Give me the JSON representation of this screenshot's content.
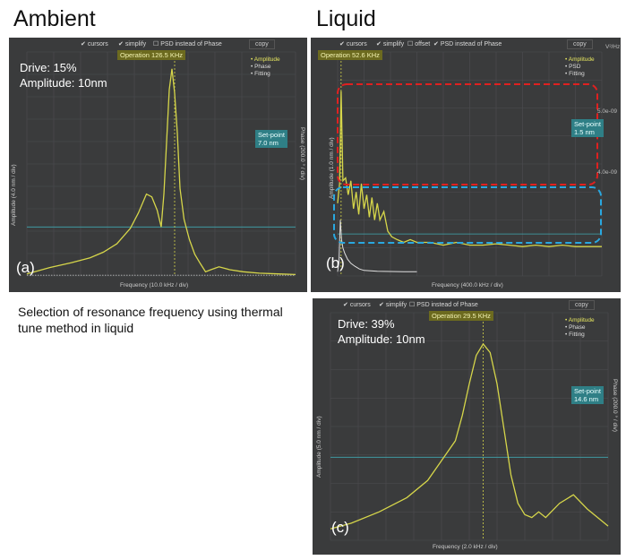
{
  "headings": {
    "ambient": "Ambient",
    "liquid": "Liquid"
  },
  "caption": "Selection of resonance frequency using thermal tune method in liquid",
  "colors": {
    "amplitude": "#d6d64a",
    "psd": "#e0e0e0",
    "setpoint": "#3fa7b0",
    "panel": "#3a3b3c",
    "grid": "#4d4e50",
    "highlight_red": "#e02020",
    "highlight_blue": "#29a8e0"
  },
  "panels": {
    "a": {
      "toolbar": {
        "cursors": "cursors",
        "simplify": "simplify",
        "psd": "PSD instead of Phase",
        "copy": "copy"
      },
      "operation_label": "Operation 126.5 KHz",
      "setpoint_label": [
        "Set-point",
        "7.0 nm"
      ],
      "legend": [
        "Amplitude",
        "Phase",
        "Fitting"
      ],
      "drive": "Drive: 15%",
      "amplitude": "Amplitude: 10nm",
      "panel_label": "(a)",
      "xlabel": "Frequency (10.0 kHz / div)",
      "ylabel": "Amplitude (4.0 nm / div)",
      "y2label": "Phase (200.0 ° / div)"
    },
    "b": {
      "toolbar": {
        "cursors": "cursors",
        "simplify": "simplify",
        "offset": "offset",
        "psd": "PSD instead of Phase",
        "copy": "copy"
      },
      "operation_label": "Operation 52.6 KHz",
      "setpoint_label": [
        "Set-point",
        "1.5 nm"
      ],
      "legend": [
        "Amplitude",
        "PSD",
        "Fitting"
      ],
      "panel_label": "(b)",
      "xlabel": "Frequency (400.0 kHz / div)",
      "ylabel": "Amplitude (1.0 nm / div)",
      "right_units": "V²/Hz",
      "right_ticks": [
        "5.0e-09",
        "4.0e-09"
      ]
    },
    "c": {
      "toolbar": {
        "cursors": "cursors",
        "simplify": "simplify",
        "psd": "PSD instead of Phase",
        "copy": "copy"
      },
      "operation_label": "Operation 29.5 KHz",
      "setpoint_label": [
        "Set-point",
        "14.6 nm"
      ],
      "legend": [
        "Amplitude",
        "Phase",
        "Fitting"
      ],
      "drive": "Drive: 39%",
      "amplitude": "Amplitude: 10nm",
      "panel_label": "(c)",
      "xlabel": "Frequency (2.0 kHz / div)",
      "ylabel": "Amplitude (5.0 nm / div)",
      "y2label": "Phase (200.0 ° / div)"
    }
  },
  "chart_data": [
    {
      "type": "line",
      "panel": "a",
      "xlabel": "Frequency (10.0 kHz / div)",
      "ylabel": "Amplitude (4.0 nm / div)",
      "x_unit": "kHz",
      "y_unit": "nm",
      "xlim": [
        71.5,
        171.5
      ],
      "ylim": [
        0,
        32
      ],
      "operation_frequency": 126.5,
      "setpoint": 7.0,
      "series": [
        {
          "name": "Amplitude",
          "x": [
            71.5,
            80,
            88,
            95,
            100,
            105,
            110,
            113,
            116,
            118,
            120,
            121.5,
            122.5,
            123.5,
            124.5,
            125.5,
            126.5,
            127.5,
            128.5,
            130,
            132,
            134,
            136,
            138,
            140,
            143,
            147,
            152,
            158,
            165,
            171.5
          ],
          "y": [
            0.3,
            1.2,
            1.9,
            2.6,
            3.4,
            4.6,
            6.8,
            9.0,
            11.7,
            11.3,
            9.4,
            7.0,
            11.7,
            19.1,
            26.6,
            29.6,
            26.1,
            20.4,
            12.5,
            8.1,
            5.2,
            3.1,
            1.8,
            0.6,
            0.9,
            1.3,
            0.9,
            0.6,
            0.4,
            0.3,
            0.2
          ]
        },
        {
          "name": "Phase",
          "x": [
            71.5,
            171.5
          ],
          "y": [
            0.1,
            0.1
          ]
        }
      ]
    },
    {
      "type": "line",
      "panel": "b",
      "xlabel": "Frequency (400.0 kHz / div)",
      "ylabel": "Amplitude (1.0 nm / div)",
      "x_unit": "kHz",
      "y_unit": "nm",
      "xlim": [
        0,
        4000
      ],
      "ylim": [
        0,
        8
      ],
      "operation_frequency": 52.6,
      "setpoint": 1.5,
      "series": [
        {
          "name": "Amplitude",
          "x": [
            0,
            30,
            52.6,
            80,
            120,
            160,
            200,
            240,
            280,
            320,
            360,
            400,
            440,
            480,
            520,
            560,
            600,
            640,
            700,
            760,
            820,
            900,
            1000,
            1100,
            1200,
            1400,
            1600,
            1800,
            2000,
            2200,
            2400,
            2600,
            2800,
            3000,
            3200,
            3400,
            3600,
            3800,
            4000
          ],
          "y": [
            2.6,
            3.3,
            6.6,
            3.4,
            3.5,
            2.9,
            3.4,
            2.4,
            3.0,
            2.2,
            3.3,
            2.4,
            2.9,
            2.1,
            2.8,
            2.0,
            2.6,
            2.0,
            2.3,
            1.6,
            1.4,
            1.3,
            1.2,
            1.3,
            1.2,
            1.2,
            1.1,
            1.2,
            1.1,
            1.1,
            1.15,
            1.1,
            1.05,
            1.1,
            1.05,
            1.1,
            1.05,
            1.05,
            1.05
          ]
        },
        {
          "name": "PSD",
          "x": [
            0,
            20,
            40,
            60,
            80,
            110,
            150,
            200,
            260,
            330,
            400,
            600,
            800,
            1000,
            1200
          ],
          "y": [
            0.15,
            0.5,
            2.0,
            1.3,
            1.0,
            0.8,
            0.6,
            0.45,
            0.35,
            0.25,
            0.2,
            0.17,
            0.16,
            0.15,
            0.15
          ]
        }
      ]
    },
    {
      "type": "line",
      "panel": "c",
      "xlabel": "Frequency (2.0 kHz / div)",
      "ylabel": "Amplitude (5.0 nm / div)",
      "x_unit": "kHz",
      "y_unit": "nm",
      "xlim": [
        18.5,
        38.5
      ],
      "ylim": [
        0,
        40
      ],
      "operation_frequency": 29.5,
      "setpoint": 14.6,
      "series": [
        {
          "name": "Amplitude",
          "x": [
            18.5,
            20,
            22,
            24,
            25.5,
            26.5,
            27.5,
            28,
            28.5,
            29,
            29.5,
            30,
            30.5,
            31,
            31.5,
            32,
            32.5,
            33,
            33.5,
            34,
            35,
            36,
            37,
            38.5
          ],
          "y": [
            2.0,
            3.0,
            5.0,
            7.5,
            10.5,
            14.0,
            17.5,
            22.0,
            27.5,
            32.5,
            34.5,
            33.0,
            27.5,
            19.5,
            11.5,
            6.5,
            4.5,
            4.0,
            5.0,
            4.0,
            6.5,
            8.0,
            5.5,
            2.5
          ]
        }
      ]
    }
  ]
}
